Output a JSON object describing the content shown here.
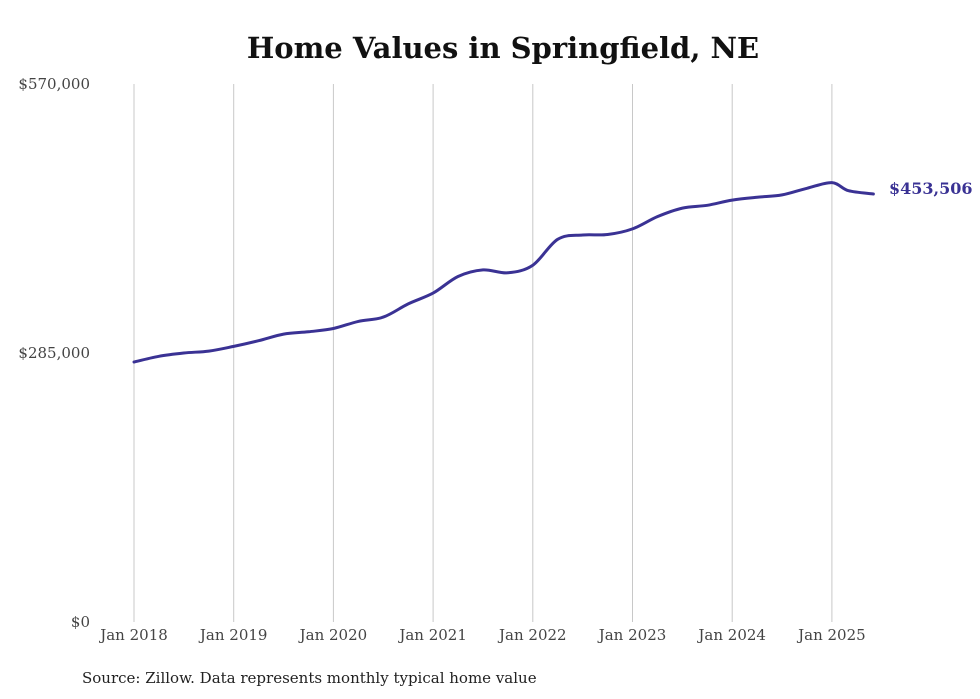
{
  "chart_data": {
    "type": "line",
    "title": "Home Values in Springfield, NE",
    "xlabel": "",
    "ylabel": "",
    "ylim": [
      0,
      570000
    ],
    "y_ticks": [
      "$0",
      "$285,000",
      "$570,000"
    ],
    "y_tick_values": [
      0,
      285000,
      570000
    ],
    "x_ticks": [
      "Jan 2018",
      "Jan 2019",
      "Jan 2020",
      "Jan 2021",
      "Jan 2022",
      "Jan 2023",
      "Jan 2024",
      "Jan 2025"
    ],
    "x_tick_values": [
      "2018-01",
      "2019-01",
      "2020-01",
      "2021-01",
      "2022-01",
      "2023-01",
      "2024-01",
      "2025-01"
    ],
    "x_range": [
      "2018-01",
      "2025-06"
    ],
    "grid": "vertical",
    "series_color": "#3a3294",
    "series": [
      {
        "x": [
          "2018-01",
          "2018-04",
          "2018-07",
          "2018-10",
          "2019-01",
          "2019-04",
          "2019-07",
          "2019-10",
          "2020-01",
          "2020-04",
          "2020-07",
          "2020-10",
          "2021-01",
          "2021-04",
          "2021-07",
          "2021-10",
          "2022-01",
          "2022-04",
          "2022-07",
          "2022-10",
          "2023-01",
          "2023-04",
          "2023-07",
          "2023-10",
          "2024-01",
          "2024-04",
          "2024-07",
          "2024-10",
          "2025-01",
          "2025-03",
          "2025-06"
        ],
        "values": [
          275500,
          281500,
          285000,
          287000,
          292000,
          298000,
          305000,
          307500,
          311000,
          318500,
          323000,
          337000,
          348500,
          366000,
          373000,
          370000,
          378000,
          405500,
          410000,
          410500,
          416500,
          429500,
          438500,
          441500,
          447000,
          450000,
          452500,
          459500,
          465500,
          457000,
          453506
        ]
      }
    ],
    "end_label": "$453,506",
    "source": "Source: Zillow. Data represents monthly typical home value"
  }
}
